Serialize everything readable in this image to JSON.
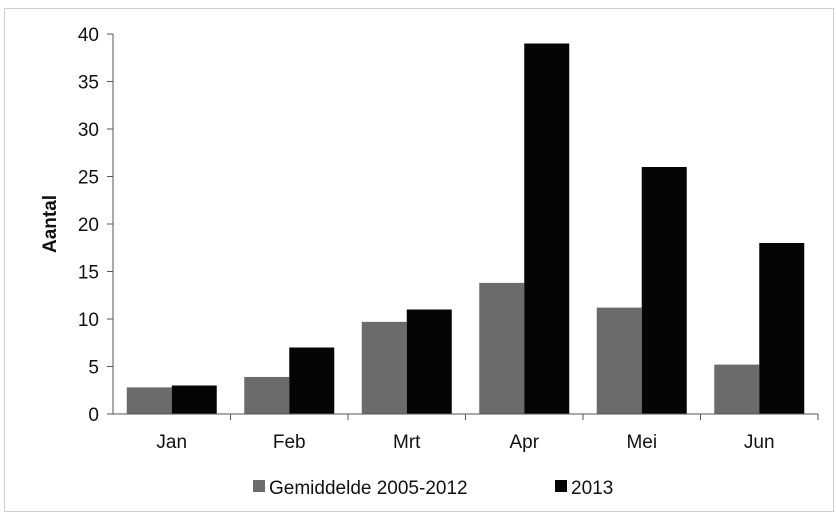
{
  "chart_data": {
    "type": "bar",
    "title": "",
    "xlabel": "",
    "ylabel": "Aantal",
    "ylim": [
      0,
      40
    ],
    "yticks": [
      0,
      5,
      10,
      15,
      20,
      25,
      30,
      35,
      40
    ],
    "categories": [
      "Jan",
      "Feb",
      "Mrt",
      "Apr",
      "Mei",
      "Jun"
    ],
    "series": [
      {
        "name": "Gemiddelde 2005-2012",
        "color": "#6b6b6b",
        "values": [
          2.8,
          3.9,
          9.7,
          13.8,
          11.2,
          5.2
        ]
      },
      {
        "name": "2013",
        "color": "#050505",
        "values": [
          3,
          7,
          11,
          39,
          26,
          18
        ]
      }
    ],
    "grid": false,
    "legend": "bottom"
  }
}
